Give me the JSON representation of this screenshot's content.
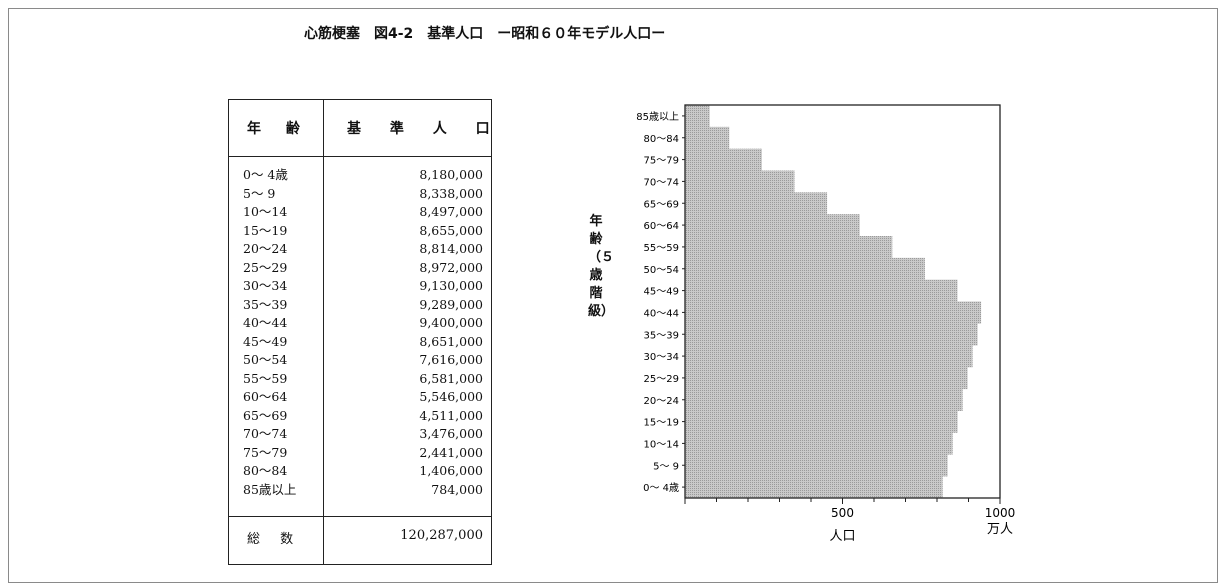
{
  "title": "心筋梗塞　図4-2　基準人口　ー昭和６０年モデル人口ー",
  "table": {
    "header_age": "年 齢",
    "header_pop": "基 準 人 口",
    "rows": [
      {
        "age": "0～ 4歳",
        "pop": "8,180,000"
      },
      {
        "age": "5～ 9",
        "pop": "8,338,000"
      },
      {
        "age": "10～14",
        "pop": "8,497,000"
      },
      {
        "age": "15～19",
        "pop": "8,655,000"
      },
      {
        "age": "20～24",
        "pop": "8,814,000"
      },
      {
        "age": "25～29",
        "pop": "8,972,000"
      },
      {
        "age": "30～34",
        "pop": "9,130,000"
      },
      {
        "age": "35～39",
        "pop": "9,289,000"
      },
      {
        "age": "40～44",
        "pop": "9,400,000"
      },
      {
        "age": "45～49",
        "pop": "8,651,000"
      },
      {
        "age": "50～54",
        "pop": "7,616,000"
      },
      {
        "age": "55～59",
        "pop": "6,581,000"
      },
      {
        "age": "60～64",
        "pop": "5,546,000"
      },
      {
        "age": "65～69",
        "pop": "4,511,000"
      },
      {
        "age": "70～74",
        "pop": "3,476,000"
      },
      {
        "age": "75～79",
        "pop": "2,441,000"
      },
      {
        "age": "80～84",
        "pop": "1,406,000"
      },
      {
        "age": "85歳以上",
        "pop": "784,000"
      }
    ],
    "total_label": "総 数",
    "total_value": "120,287,000"
  },
  "chart_data": {
    "type": "bar",
    "orientation": "horizontal",
    "categories": [
      "0～ 4歳",
      "5～ 9",
      "10～14",
      "15～19",
      "20～24",
      "25～29",
      "30～34",
      "35～39",
      "40～44",
      "45～49",
      "50～54",
      "55～59",
      "60～64",
      "65～69",
      "70～74",
      "75～79",
      "80～84",
      "85歳以上"
    ],
    "values": [
      818.0,
      833.8,
      849.7,
      865.5,
      881.4,
      897.2,
      913.0,
      928.9,
      940.0,
      865.1,
      761.6,
      658.1,
      554.6,
      451.1,
      347.6,
      244.1,
      140.6,
      78.4
    ],
    "xlim": [
      0,
      1000
    ],
    "xticks": [
      "500",
      "1000"
    ],
    "xunit": "万人",
    "xlabel": "人口",
    "ylabel": "年齢（５歳階級）",
    "bar_color": "#b8b8b8",
    "grid": false
  }
}
